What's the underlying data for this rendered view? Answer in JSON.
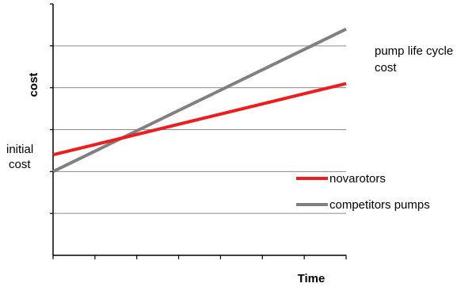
{
  "chart_data": {
    "type": "line",
    "title": "",
    "xlabel": "Time",
    "ylabel": "cost",
    "x": [
      0,
      1
    ],
    "xlim": [
      0,
      1
    ],
    "ylim": [
      0,
      6
    ],
    "ytick_count": 6,
    "xtick_count": 7,
    "grid": true,
    "legend_position": "bottom-right",
    "series": [
      {
        "name": "novarotors",
        "values": [
          2.4,
          4.1
        ],
        "color": "#ee1c1c"
      },
      {
        "name": "competitors pumps",
        "values": [
          2.0,
          5.4
        ],
        "color": "#808080"
      }
    ],
    "annotations": {
      "start_label_line1": "initial",
      "start_label_line2": "cost",
      "end_label_line1": "pump life cycle",
      "end_label_line2": "cost"
    }
  }
}
